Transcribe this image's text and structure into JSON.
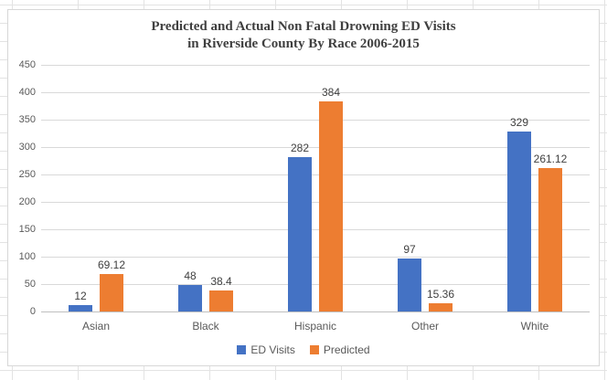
{
  "chart_data": {
    "type": "bar",
    "title_lines": [
      "Predicted and Actual Non Fatal Drowning ED Visits",
      "in Riverside County By Race 2006-2015"
    ],
    "categories": [
      "Asian",
      "Black",
      "Hispanic",
      "Other",
      "White"
    ],
    "series": [
      {
        "name": "ED Visits",
        "color": "#4472C4",
        "values": [
          12,
          48,
          282,
          97,
          329
        ],
        "labels": [
          "12",
          "48",
          "282",
          "97",
          "329"
        ]
      },
      {
        "name": "Predicted",
        "color": "#ED7D31",
        "values": [
          69.12,
          38.4,
          384,
          15.36,
          261.12
        ],
        "labels": [
          "69.12",
          "38.4",
          "384",
          "15.36",
          "261.12"
        ]
      }
    ],
    "xlabel": "",
    "ylabel": "",
    "ylim": [
      0,
      450
    ],
    "ytick_step": 50,
    "yticks": [
      "0",
      "50",
      "100",
      "150",
      "200",
      "250",
      "300",
      "350",
      "400",
      "450"
    ],
    "grid": true,
    "legend_position": "bottom"
  },
  "colors": {
    "ed_visits": "#4472C4",
    "predicted": "#ED7D31",
    "gridline": "#D9D9D9",
    "axis_line": "#BFBFBF",
    "text_gray": "#595959",
    "title_text": "#404040"
  }
}
